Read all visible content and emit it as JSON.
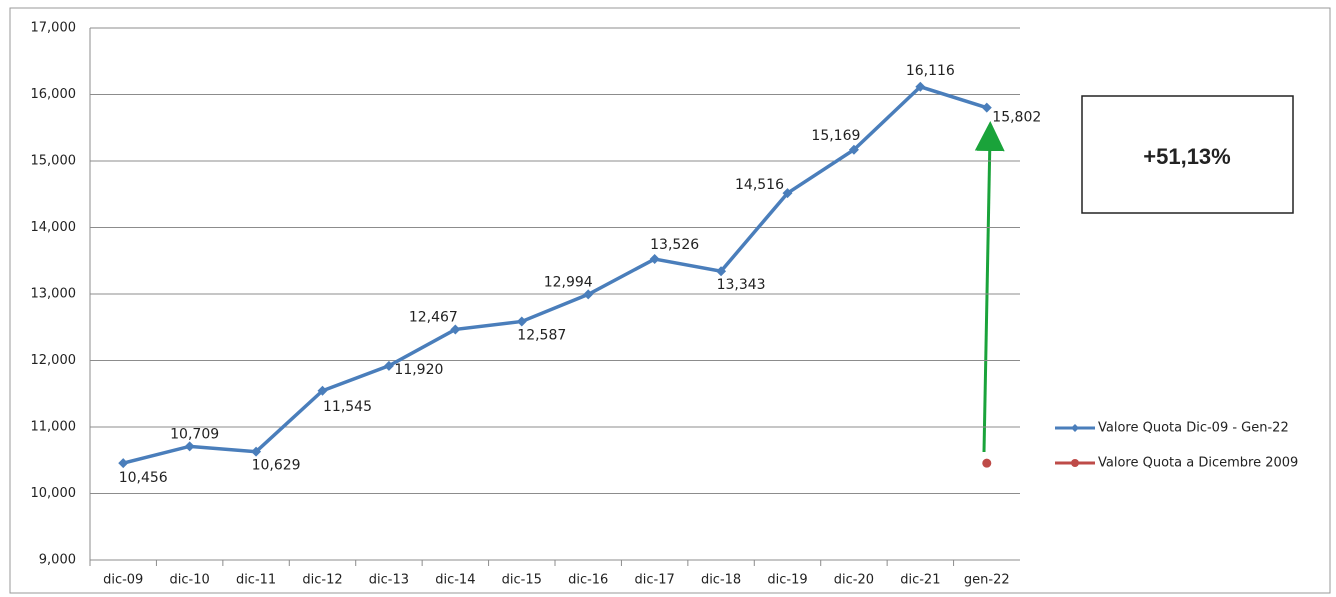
{
  "chart_data": {
    "type": "line",
    "annotation": "+51,13%",
    "categories": [
      "dic-09",
      "dic-10",
      "dic-11",
      "dic-12",
      "dic-13",
      "dic-14",
      "dic-15",
      "dic-16",
      "dic-17",
      "dic-18",
      "dic-19",
      "dic-20",
      "dic-21",
      "gen-22"
    ],
    "series": [
      {
        "name": "Valore Quota Dic-09 - Gen-22",
        "color": "#4a7ebb",
        "values": [
          10.456,
          10.709,
          10.629,
          11.545,
          11.92,
          12.467,
          12.587,
          12.994,
          13.526,
          13.343,
          14.516,
          15.169,
          16.116,
          15.802
        ],
        "value_labels": [
          "10,456",
          "10,709",
          "10,629",
          "11,545",
          "11,920",
          "12,467",
          "12,587",
          "12,994",
          "13,526",
          "13,343",
          "14,516",
          "15,169",
          "16,116",
          "15,802"
        ]
      },
      {
        "name": "Valore Quota a Dicembre 2009",
        "color": "#be4b48",
        "values": [
          null,
          null,
          null,
          null,
          null,
          null,
          null,
          null,
          null,
          null,
          null,
          null,
          null,
          10.456
        ]
      }
    ],
    "ylim": [
      9,
      17
    ],
    "yticks": [
      {
        "value": 9,
        "label": "9,000"
      },
      {
        "value": 10,
        "label": "10,000"
      },
      {
        "value": 11,
        "label": "11,000"
      },
      {
        "value": 12,
        "label": "12,000"
      },
      {
        "value": 13,
        "label": "13,000"
      },
      {
        "value": 14,
        "label": "14,000"
      },
      {
        "value": 15,
        "label": "15,000"
      },
      {
        "value": 16,
        "label": "16,000"
      },
      {
        "value": 17,
        "label": "17,000"
      }
    ],
    "grid": true,
    "legend": "right"
  }
}
